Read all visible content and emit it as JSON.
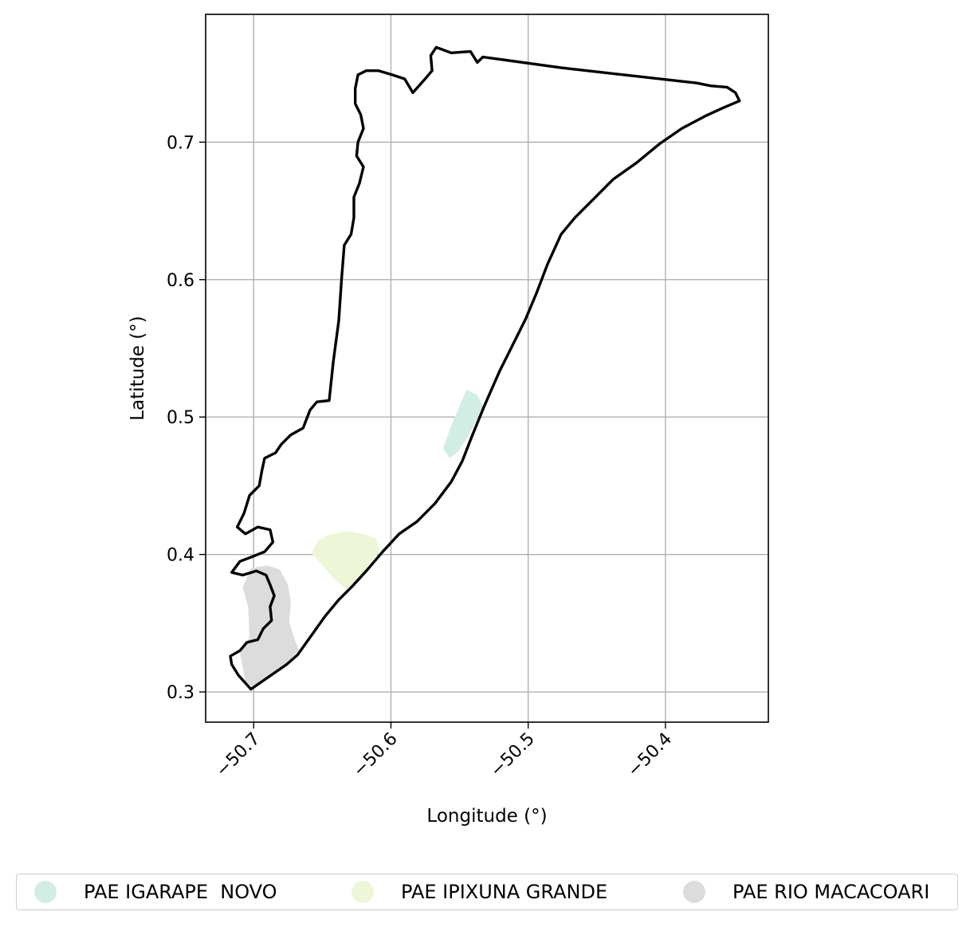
{
  "chart_data": {
    "type": "map",
    "xlabel": "Longitude (°)",
    "ylabel": "Latitude (°)",
    "xlim": [
      -50.735,
      -50.325
    ],
    "ylim": [
      0.278,
      0.793
    ],
    "xticks": [
      -50.7,
      -50.6,
      -50.5,
      -50.4
    ],
    "xtick_labels": [
      "−50.7",
      "−50.6",
      "−50.5",
      "−50.4"
    ],
    "yticks": [
      0.3,
      0.4,
      0.5,
      0.6,
      0.7
    ],
    "ytick_labels": [
      "0.3",
      "0.4",
      "0.5",
      "0.6",
      "0.7"
    ],
    "grid": true,
    "legend_position": "bottom",
    "boundary": {
      "color": "#000000",
      "coords": [
        [
          -50.702,
          0.302
        ],
        [
          -50.689,
          0.311
        ],
        [
          -50.676,
          0.32
        ],
        [
          -50.668,
          0.327
        ],
        [
          -50.658,
          0.341
        ],
        [
          -50.648,
          0.355
        ],
        [
          -50.638,
          0.367
        ],
        [
          -50.628,
          0.377
        ],
        [
          -50.618,
          0.388
        ],
        [
          -50.606,
          0.402
        ],
        [
          -50.594,
          0.415
        ],
        [
          -50.581,
          0.424
        ],
        [
          -50.568,
          0.437
        ],
        [
          -50.556,
          0.453
        ],
        [
          -50.548,
          0.468
        ],
        [
          -50.541,
          0.486
        ],
        [
          -50.532,
          0.508
        ],
        [
          -50.521,
          0.533
        ],
        [
          -50.512,
          0.551
        ],
        [
          -50.502,
          0.571
        ],
        [
          -50.494,
          0.59
        ],
        [
          -50.486,
          0.611
        ],
        [
          -50.476,
          0.633
        ],
        [
          -50.466,
          0.645
        ],
        [
          -50.453,
          0.658
        ],
        [
          -50.438,
          0.673
        ],
        [
          -50.421,
          0.685
        ],
        [
          -50.404,
          0.699
        ],
        [
          -50.388,
          0.71
        ],
        [
          -50.371,
          0.719
        ],
        [
          -50.358,
          0.725
        ],
        [
          -50.346,
          0.73
        ],
        [
          -50.349,
          0.736
        ],
        [
          -50.355,
          0.74
        ],
        [
          -50.367,
          0.741
        ],
        [
          -50.377,
          0.743
        ],
        [
          -50.475,
          0.754
        ],
        [
          -50.533,
          0.762
        ],
        [
          -50.537,
          0.758
        ],
        [
          -50.542,
          0.766
        ],
        [
          -50.556,
          0.765
        ],
        [
          -50.567,
          0.769
        ],
        [
          -50.571,
          0.763
        ],
        [
          -50.57,
          0.752
        ],
        [
          -50.576,
          0.745
        ],
        [
          -50.584,
          0.736
        ],
        [
          -50.59,
          0.746
        ],
        [
          -50.599,
          0.749
        ],
        [
          -50.609,
          0.752
        ],
        [
          -50.618,
          0.752
        ],
        [
          -50.624,
          0.749
        ],
        [
          -50.626,
          0.739
        ],
        [
          -50.626,
          0.728
        ],
        [
          -50.622,
          0.72
        ],
        [
          -50.62,
          0.71
        ],
        [
          -50.624,
          0.7
        ],
        [
          -50.625,
          0.69
        ],
        [
          -50.62,
          0.682
        ],
        [
          -50.623,
          0.67
        ],
        [
          -50.627,
          0.66
        ],
        [
          -50.627,
          0.645
        ],
        [
          -50.629,
          0.633
        ],
        [
          -50.634,
          0.625
        ],
        [
          -50.636,
          0.6
        ],
        [
          -50.638,
          0.57
        ],
        [
          -50.642,
          0.54
        ],
        [
          -50.645,
          0.512
        ],
        [
          -50.654,
          0.511
        ],
        [
          -50.659,
          0.505
        ],
        [
          -50.664,
          0.492
        ],
        [
          -50.673,
          0.487
        ],
        [
          -50.68,
          0.48
        ],
        [
          -50.684,
          0.474
        ],
        [
          -50.692,
          0.47
        ],
        [
          -50.694,
          0.461
        ],
        [
          -50.696,
          0.45
        ],
        [
          -50.703,
          0.443
        ],
        [
          -50.707,
          0.43
        ],
        [
          -50.712,
          0.42
        ],
        [
          -50.706,
          0.415
        ],
        [
          -50.697,
          0.42
        ],
        [
          -50.688,
          0.418
        ],
        [
          -50.686,
          0.409
        ],
        [
          -50.692,
          0.402
        ],
        [
          -50.702,
          0.398
        ],
        [
          -50.71,
          0.395
        ],
        [
          -50.716,
          0.387
        ],
        [
          -50.708,
          0.385
        ],
        [
          -50.698,
          0.388
        ],
        [
          -50.691,
          0.385
        ],
        [
          -50.688,
          0.378
        ],
        [
          -50.685,
          0.37
        ],
        [
          -50.688,
          0.362
        ],
        [
          -50.687,
          0.352
        ],
        [
          -50.693,
          0.346
        ],
        [
          -50.697,
          0.338
        ],
        [
          -50.705,
          0.336
        ],
        [
          -50.71,
          0.33
        ],
        [
          -50.717,
          0.326
        ],
        [
          -50.716,
          0.32
        ],
        [
          -50.711,
          0.312
        ],
        [
          -50.702,
          0.302
        ]
      ]
    },
    "series": [
      {
        "name": "PAE IGARAPE  NOVO",
        "color": "#d2ede3",
        "polygon": [
          [
            -50.562,
            0.477
          ],
          [
            -50.556,
            0.494
          ],
          [
            -50.55,
            0.508
          ],
          [
            -50.545,
            0.52
          ],
          [
            -50.537,
            0.516
          ],
          [
            -50.533,
            0.508
          ],
          [
            -50.539,
            0.495
          ],
          [
            -50.545,
            0.484
          ],
          [
            -50.551,
            0.475
          ],
          [
            -50.557,
            0.47
          ]
        ]
      },
      {
        "name": "PAE IPIXUNA GRANDE",
        "color": "#edf7d8",
        "polygon": [
          [
            -50.658,
            0.401
          ],
          [
            -50.653,
            0.41
          ],
          [
            -50.646,
            0.414
          ],
          [
            -50.633,
            0.417
          ],
          [
            -50.621,
            0.415
          ],
          [
            -50.611,
            0.412
          ],
          [
            -50.608,
            0.403
          ],
          [
            -50.615,
            0.394
          ],
          [
            -50.622,
            0.384
          ],
          [
            -50.632,
            0.374
          ],
          [
            -50.641,
            0.382
          ],
          [
            -50.65,
            0.392
          ]
        ]
      },
      {
        "name": "PAE RIO MACACOARI",
        "color": "#dcdcdc",
        "polygon": [
          [
            -50.706,
            0.308
          ],
          [
            -50.71,
            0.328
          ],
          [
            -50.703,
            0.34
          ],
          [
            -50.704,
            0.362
          ],
          [
            -50.708,
            0.376
          ],
          [
            -50.702,
            0.39
          ],
          [
            -50.69,
            0.392
          ],
          [
            -50.681,
            0.389
          ],
          [
            -50.675,
            0.378
          ],
          [
            -50.673,
            0.365
          ],
          [
            -50.674,
            0.35
          ],
          [
            -50.67,
            0.338
          ],
          [
            -50.667,
            0.33
          ],
          [
            -50.676,
            0.321
          ],
          [
            -50.689,
            0.311
          ],
          [
            -50.7,
            0.303
          ]
        ]
      }
    ]
  }
}
